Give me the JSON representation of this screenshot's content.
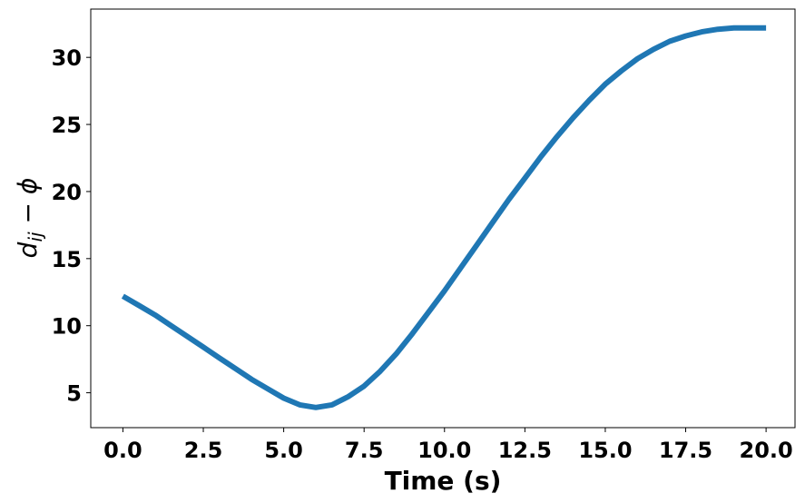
{
  "chart_data": {
    "type": "line",
    "xlabel": "Time (s)",
    "ylabel": {
      "d": "d",
      "sub": "ij",
      "rest": " − ϕ"
    },
    "xlim": [
      -1.0,
      20.9
    ],
    "ylim": [
      2.4,
      33.6
    ],
    "xticks": [
      0.0,
      2.5,
      5.0,
      7.5,
      10.0,
      12.5,
      15.0,
      17.5,
      20.0
    ],
    "xtick_labels": [
      "0.0",
      "2.5",
      "5.0",
      "7.5",
      "10.0",
      "12.5",
      "15.0",
      "17.5",
      "20.0"
    ],
    "yticks": [
      5,
      10,
      15,
      20,
      25,
      30
    ],
    "ytick_labels": [
      "5",
      "10",
      "15",
      "20",
      "25",
      "30"
    ],
    "grid": false,
    "series": [
      {
        "color": "#1f77b4",
        "x": [
          0,
          0.5,
          1,
          1.5,
          2,
          2.5,
          3,
          3.5,
          4,
          4.5,
          5,
          5.5,
          6,
          6.5,
          7,
          7.5,
          8,
          8.5,
          9,
          9.5,
          10,
          10.5,
          11,
          11.5,
          12,
          12.5,
          13,
          13.5,
          14,
          14.5,
          15,
          15.5,
          16,
          16.5,
          17,
          17.5,
          18,
          18.5,
          19,
          19.5,
          20
        ],
        "y": [
          12.2,
          11.5,
          10.8,
          10.0,
          9.2,
          8.4,
          7.6,
          6.8,
          6.0,
          5.3,
          4.6,
          4.1,
          3.9,
          4.1,
          4.7,
          5.5,
          6.6,
          7.9,
          9.4,
          11.0,
          12.6,
          14.3,
          16.0,
          17.7,
          19.4,
          21.0,
          22.6,
          24.1,
          25.5,
          26.8,
          28.0,
          29.0,
          29.9,
          30.6,
          31.2,
          31.6,
          31.9,
          32.1,
          32.2,
          32.2,
          32.2
        ]
      }
    ]
  }
}
